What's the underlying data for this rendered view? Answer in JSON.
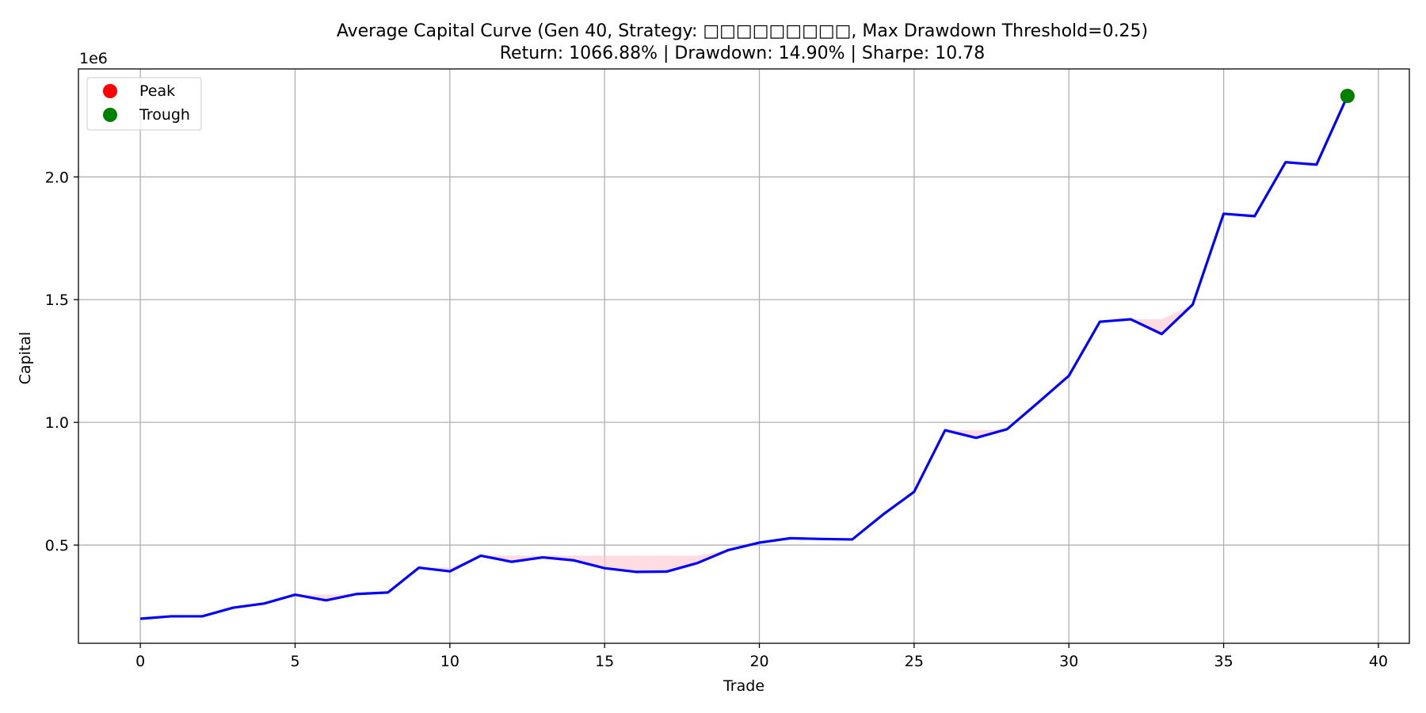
{
  "colors": {
    "line": "#0000ff",
    "drawdown_fill": "#ffc0cb",
    "peak": "#ff0000",
    "trough": "#008000",
    "grid": "#b0b0b0"
  },
  "chart_data": {
    "type": "line",
    "title": "Average Capital Curve (Gen 40, Strategy: □□□□□□□□□, Max Drawdown Threshold=0.25)",
    "subtitle": "Return: 1066.88% | Drawdown: 14.90% | Sharpe: 10.78",
    "xlabel": "Trade",
    "ylabel": "Capital",
    "y_scale_label": "1e6",
    "xlim": [
      -2,
      41
    ],
    "ylim": [
      0.1,
      2.44
    ],
    "x_ticks": [
      0,
      5,
      10,
      15,
      20,
      25,
      30,
      35,
      40
    ],
    "x_tick_labels": [
      "0",
      "5",
      "10",
      "15",
      "20",
      "25",
      "30",
      "35",
      "40"
    ],
    "y_ticks": [
      0.5,
      1.0,
      1.5,
      2.0
    ],
    "y_tick_labels": [
      "0.5",
      "1.0",
      "1.5",
      "2.0"
    ],
    "grid": true,
    "legend_position": "upper-left",
    "series": [
      {
        "name": "",
        "x": [
          0,
          1,
          2,
          3,
          4,
          5,
          6,
          7,
          8,
          9,
          10,
          11,
          12,
          13,
          14,
          15,
          16,
          17,
          18,
          19,
          20,
          21,
          22,
          23,
          24,
          25,
          26,
          27,
          28,
          29,
          30,
          31,
          32,
          33,
          34,
          35,
          36,
          37,
          38,
          39
        ],
        "values": [
          0.2,
          0.21,
          0.21,
          0.245,
          0.262,
          0.298,
          0.275,
          0.301,
          0.307,
          0.408,
          0.393,
          0.457,
          0.432,
          0.45,
          0.438,
          0.406,
          0.391,
          0.392,
          0.427,
          0.48,
          0.51,
          0.528,
          0.525,
          0.523,
          0.625,
          0.717,
          0.968,
          0.937,
          0.972,
          1.08,
          1.19,
          1.41,
          1.42,
          1.36,
          1.48,
          1.85,
          1.84,
          2.06,
          2.05,
          2.33
        ]
      }
    ],
    "markers": [
      {
        "label": "Peak",
        "x": 39,
        "y": 2.33
      },
      {
        "label": "Trough",
        "x": 39,
        "y": 2.33
      }
    ],
    "legend": [
      {
        "label": "Peak"
      },
      {
        "label": "Trough"
      }
    ]
  }
}
